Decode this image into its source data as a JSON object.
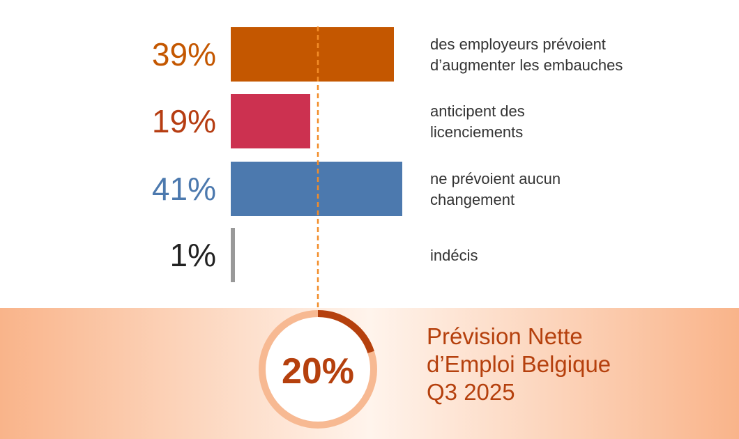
{
  "chart_data": {
    "type": "bar",
    "orientation": "horizontal",
    "unit": "%",
    "xlim": [
      0,
      41
    ],
    "categories": [
      "des employeurs prévoient d’augmenter les embauches",
      "anticipent des licenciements",
      "ne prévoient aucun changement",
      "indécis"
    ],
    "bars": [
      {
        "value": 39,
        "label": "39%",
        "description_lines": [
          "des employeurs prévoient",
          "d’augmenter les embauches"
        ],
        "color": "#C45700",
        "label_color": "#C45700"
      },
      {
        "value": 19,
        "label": "19%",
        "description_lines": [
          "anticipent des",
          "licenciements"
        ],
        "color": "#CC3150",
        "label_color": "#B63D12"
      },
      {
        "value": 41,
        "label": "41%",
        "description_lines": [
          "ne prévoient aucun",
          "changement"
        ],
        "color": "#4C79AE",
        "label_color": "#4C79AE"
      },
      {
        "value": 1,
        "label": "1%",
        "description_lines": [
          "indécis"
        ],
        "color": "#999999",
        "label_color": "#222222"
      }
    ],
    "net_forecast": {
      "value": 20,
      "label": "20%",
      "color": "#B5400D",
      "ring_color": "#F7B992",
      "caption_lines": [
        "Prévision Nette",
        "d’Emploi Belgique",
        "Q3 2025"
      ],
      "caption_color": "#B5400D"
    },
    "reference_line_color": "#F28C28",
    "band_color": "#F9B48A",
    "grid": false,
    "legend": "none"
  }
}
